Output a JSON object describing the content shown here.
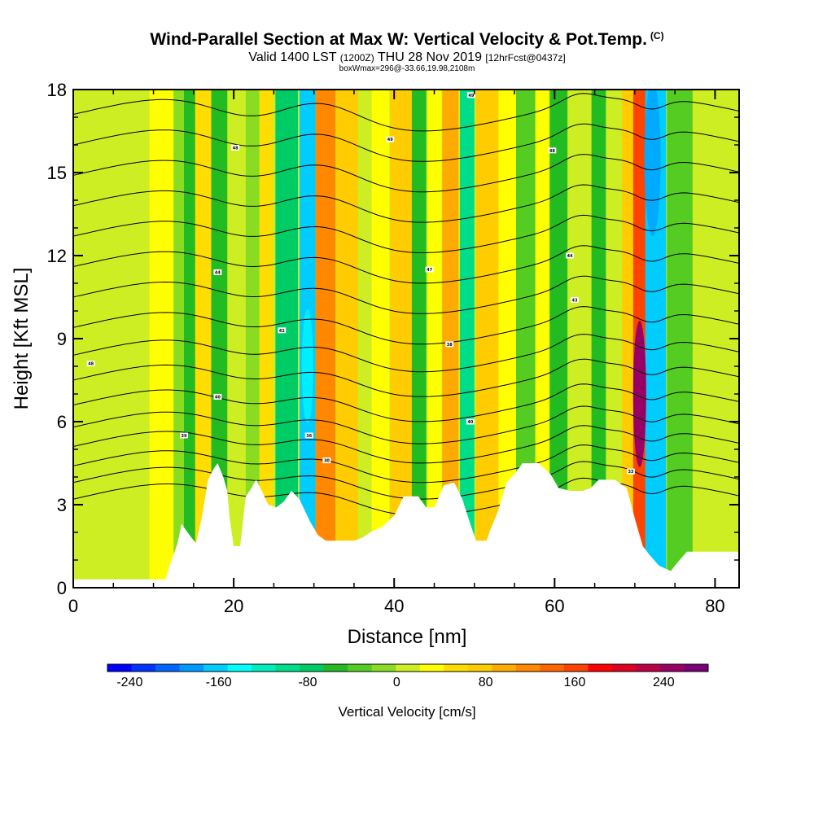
{
  "header": {
    "title": "Wind-Parallel Section at Max W: Vertical Velocity & Pot.Temp.",
    "title_mark": "(C)",
    "subtitle_a": "Valid 1400 LST",
    "subtitle_b": "(1200Z)",
    "subtitle_c": "THU 28 Nov 2019",
    "subtitle_d": "[12hrFcst@0437z]",
    "subtitle3": "boxWmax=296@-33.66,19.98,2108m"
  },
  "chart_data": {
    "type": "heatmap",
    "xlabel": "Distance [nm]",
    "ylabel": "Height [Kft MSL]",
    "xlim": [
      0,
      83
    ],
    "ylim": [
      0,
      18
    ],
    "x_ticks": [
      0,
      20,
      40,
      60,
      80
    ],
    "y_ticks": [
      0,
      3,
      6,
      9,
      12,
      15,
      18
    ],
    "colorbar": {
      "label": "Vertical Velocity [cm/s]",
      "range": [
        -260,
        280
      ],
      "ticks": [
        -240,
        -160,
        -80,
        0,
        80,
        160,
        240
      ],
      "colors": [
        "#0000ff",
        "#0033ff",
        "#0066ff",
        "#0099ff",
        "#00ccff",
        "#00ffff",
        "#00eebb",
        "#00dd88",
        "#00cc66",
        "#22bb22",
        "#55cc22",
        "#88dd22",
        "#ccee22",
        "#ffff00",
        "#ffdd00",
        "#ffcc00",
        "#ffaa00",
        "#ff8800",
        "#ff6600",
        "#ff4400",
        "#ff0000",
        "#dd0022",
        "#bb0044",
        "#990066",
        "#770077"
      ]
    },
    "terrain_kft": [
      [
        0,
        0.3
      ],
      [
        11.5,
        0.3
      ],
      [
        12,
        0.8
      ],
      [
        13,
        1.6
      ],
      [
        13.5,
        2.3
      ],
      [
        14.5,
        1.9
      ],
      [
        15.3,
        1.6
      ],
      [
        16,
        2.5
      ],
      [
        16.8,
        3.9
      ],
      [
        17.5,
        4.3
      ],
      [
        18,
        4.5
      ],
      [
        18.7,
        4.0
      ],
      [
        19.2,
        3.5
      ],
      [
        19.5,
        2.5
      ],
      [
        20,
        1.5
      ],
      [
        20.8,
        1.5
      ],
      [
        21.5,
        3.3
      ],
      [
        22,
        3.5
      ],
      [
        22.8,
        3.9
      ],
      [
        23.5,
        3.5
      ],
      [
        24.3,
        3.0
      ],
      [
        25.3,
        2.9
      ],
      [
        26.2,
        3.1
      ],
      [
        27.2,
        3.5
      ],
      [
        28.2,
        3.2
      ],
      [
        29.5,
        2.4
      ],
      [
        30.5,
        1.9
      ],
      [
        31.5,
        1.7
      ],
      [
        35,
        1.7
      ],
      [
        36,
        1.8
      ],
      [
        37,
        2.0
      ],
      [
        38.5,
        2.2
      ],
      [
        40,
        2.6
      ],
      [
        41.2,
        3.3
      ],
      [
        43,
        3.3
      ],
      [
        44,
        2.9
      ],
      [
        45,
        2.9
      ],
      [
        46.2,
        3.7
      ],
      [
        47.5,
        3.8
      ],
      [
        48.5,
        3.2
      ],
      [
        49.5,
        2.3
      ],
      [
        50.2,
        1.7
      ],
      [
        51.5,
        1.7
      ],
      [
        52,
        2.1
      ],
      [
        53,
        2.8
      ],
      [
        54,
        3.8
      ],
      [
        55,
        4.1
      ],
      [
        56,
        4.5
      ],
      [
        58,
        4.5
      ],
      [
        59.5,
        4.1
      ],
      [
        60.5,
        3.6
      ],
      [
        62,
        3.5
      ],
      [
        63.5,
        3.5
      ],
      [
        64.5,
        3.6
      ],
      [
        65.5,
        3.9
      ],
      [
        67.5,
        3.9
      ],
      [
        69,
        3.6
      ],
      [
        70,
        2.5
      ],
      [
        71,
        1.5
      ],
      [
        71.8,
        1.2
      ],
      [
        73,
        0.8
      ],
      [
        74.5,
        0.6
      ],
      [
        75,
        0.8
      ],
      [
        76.5,
        1.3
      ],
      [
        83,
        1.3
      ]
    ],
    "isentropes": {
      "units": "C",
      "labels": [
        {
          "x": 2.2,
          "y": 8.1,
          "value": "48"
        },
        {
          "x": 13.8,
          "y": 5.5,
          "value": "39"
        },
        {
          "x": 18.0,
          "y": 6.9,
          "value": "40"
        },
        {
          "x": 18.0,
          "y": 11.4,
          "value": "44"
        },
        {
          "x": 20.2,
          "y": 15.9,
          "value": "48"
        },
        {
          "x": 26.0,
          "y": 9.3,
          "value": "42"
        },
        {
          "x": 29.4,
          "y": 5.5,
          "value": "36"
        },
        {
          "x": 31.6,
          "y": 4.6,
          "value": "30"
        },
        {
          "x": 39.5,
          "y": 16.2,
          "value": "49"
        },
        {
          "x": 44.4,
          "y": 11.5,
          "value": "47"
        },
        {
          "x": 46.9,
          "y": 8.8,
          "value": "38"
        },
        {
          "x": 49.5,
          "y": 6.0,
          "value": "40"
        },
        {
          "x": 49.6,
          "y": 17.8,
          "value": "49"
        },
        {
          "x": 59.7,
          "y": 15.8,
          "value": "48"
        },
        {
          "x": 61.9,
          "y": 12.0,
          "value": "44"
        },
        {
          "x": 62.5,
          "y": 10.4,
          "value": "43"
        },
        {
          "x": 69.5,
          "y": 4.2,
          "value": "33"
        }
      ]
    }
  }
}
